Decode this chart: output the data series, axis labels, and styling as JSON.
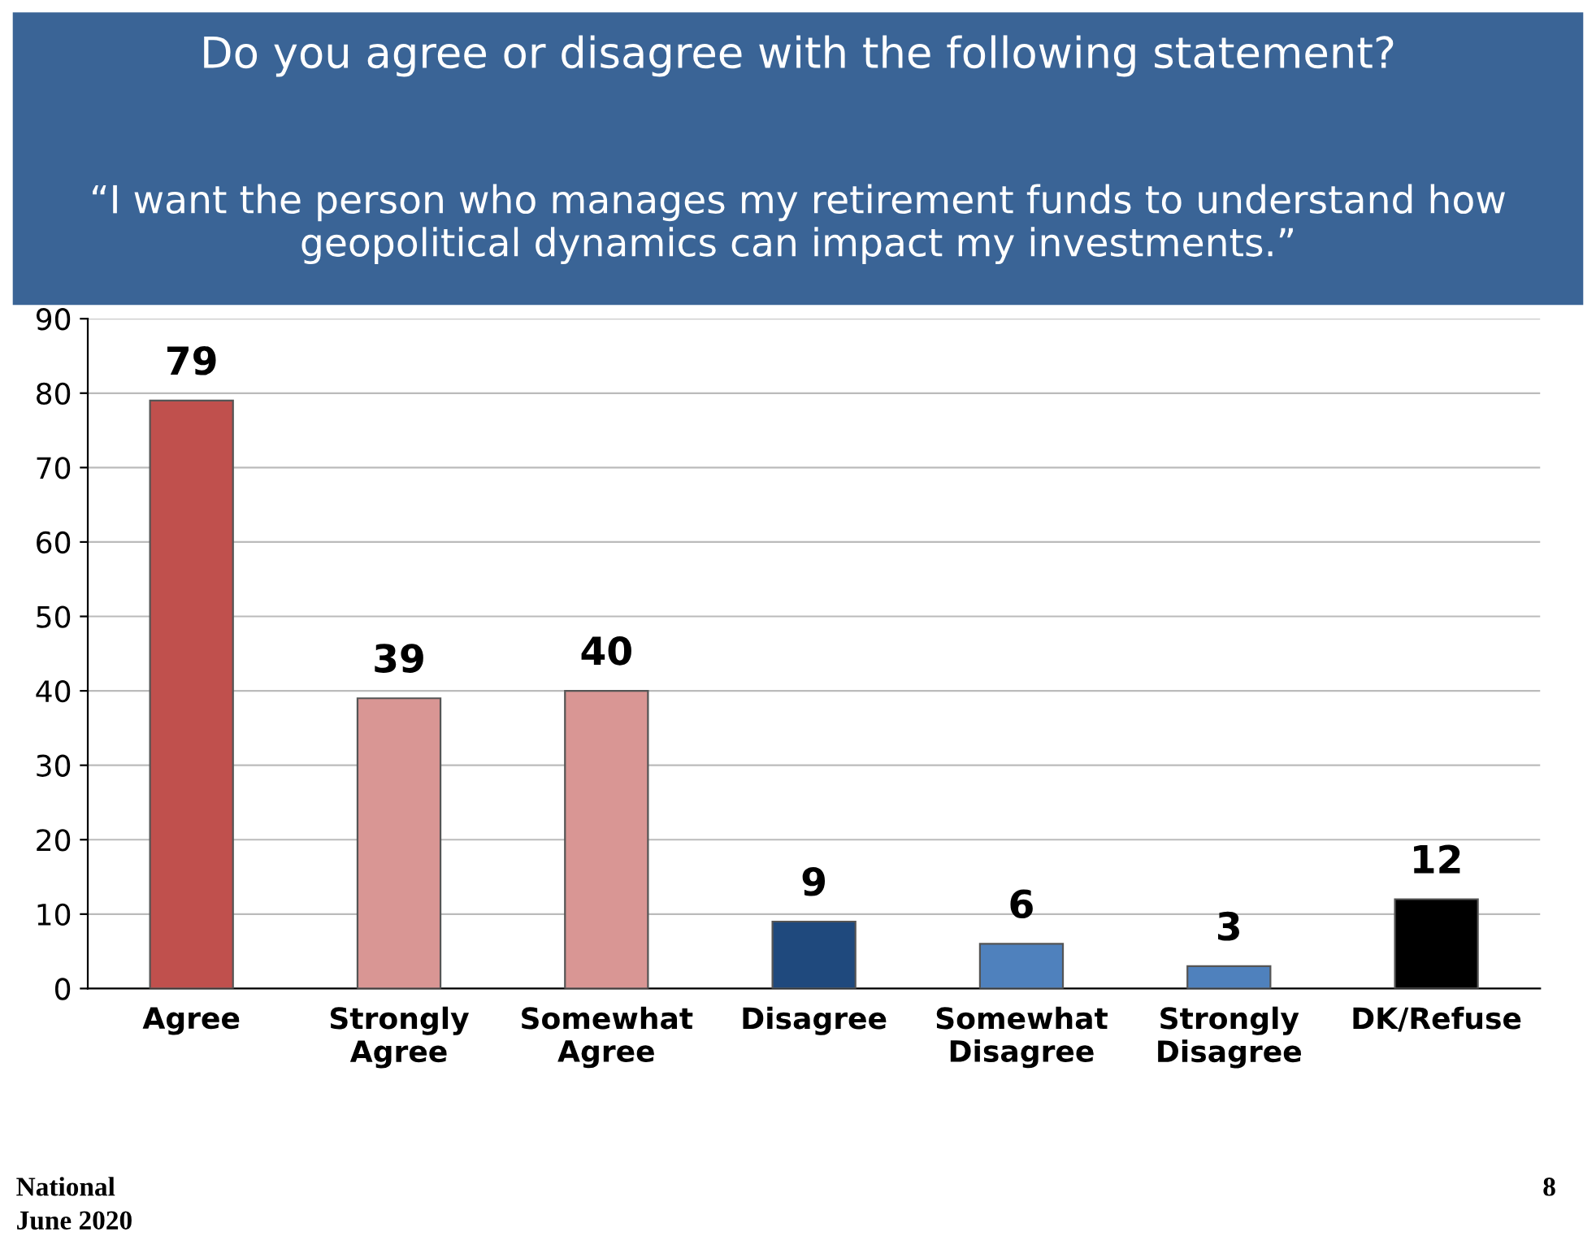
{
  "chart_data": {
    "type": "bar",
    "title": "Do you agree or disagree with the following statement?",
    "subtitle": "“I want the person who manages my retirement funds to understand how geopolitical dynamics can impact my investments.”",
    "categories": [
      "Agree",
      "Strongly\nAgree",
      "Somewhat\nAgree",
      "Disagree",
      "Somewhat\nDisagree",
      "Strongly\nDisagree",
      "DK/Refuse"
    ],
    "values": [
      79,
      39,
      40,
      9,
      6,
      3,
      12
    ],
    "colors": [
      "#c0504d",
      "#d99694",
      "#d99694",
      "#1f497d",
      "#4f81bd",
      "#4f81bd",
      "#000000"
    ],
    "ylim": [
      0,
      90
    ],
    "yticks": [
      0,
      10,
      20,
      30,
      40,
      50,
      60,
      70,
      80,
      90
    ],
    "grid": "y",
    "data_labels": true,
    "legend": false,
    "annotations": [
      "National",
      "June 2020",
      "8"
    ]
  }
}
